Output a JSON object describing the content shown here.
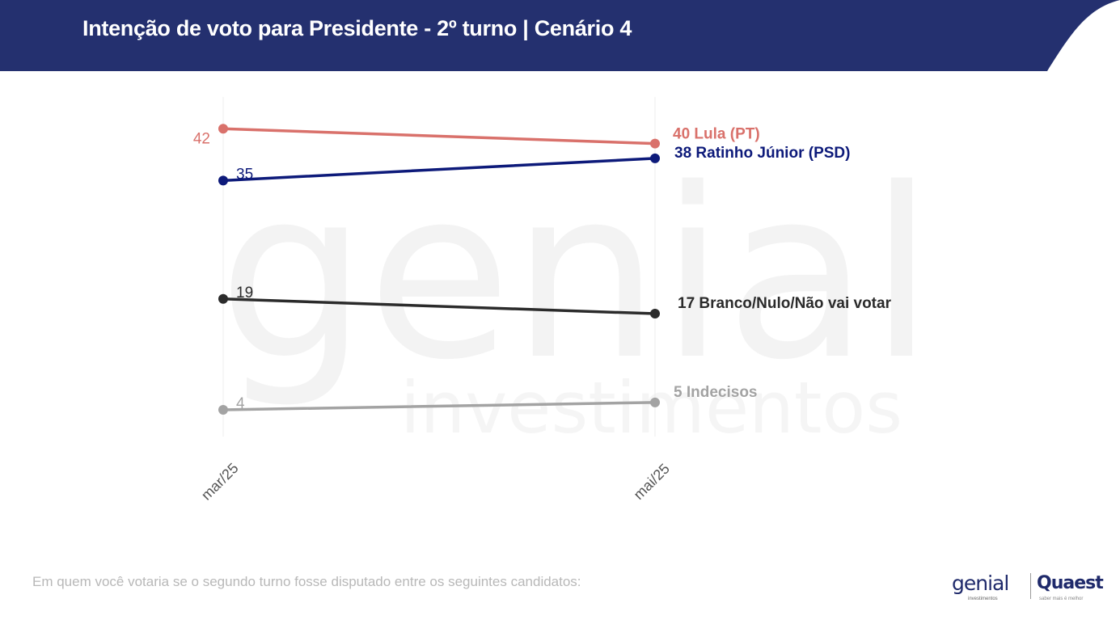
{
  "header": {
    "title": "Intenção de voto para Presidente - 2º turno | Cenário 4",
    "banner_color": "#24306f"
  },
  "footnote": "Em quem você votaria se o segundo turno fosse disputado entre os seguintes candidatos:",
  "logos": {
    "genial": "genial",
    "genial_sub": "investimentos",
    "quaest": "Quaest",
    "quaest_sub": "saber mais é melhor"
  },
  "watermark": {
    "line1": "genial",
    "line2": "investimentos"
  },
  "chart_data": {
    "type": "line",
    "title": "Intenção de voto para Presidente - 2º turno | Cenário 4",
    "x": [
      "mar/25",
      "mai/25"
    ],
    "ylim": [
      0,
      45
    ],
    "grid": "vertical",
    "series": [
      {
        "name": "Lula (PT)",
        "values": [
          42,
          40
        ],
        "color": "#d9716b",
        "start_label": "42",
        "end_label": "40 Lula (PT)",
        "start_side": "left"
      },
      {
        "name": "Ratinho Júnior (PSD)",
        "values": [
          35,
          38
        ],
        "color": "#0d1a7a",
        "start_label": "35",
        "end_label": "38 Ratinho Júnior (PSD)",
        "start_side": "right"
      },
      {
        "name": "Branco/Nulo/Não vai votar",
        "values": [
          19,
          17
        ],
        "color": "#2b2b2b",
        "start_label": "19",
        "end_label": "17 Branco/Nulo/Não vai votar",
        "start_side": "right"
      },
      {
        "name": "Indecisos",
        "values": [
          4,
          5
        ],
        "color": "#a3a3a3",
        "start_label": "4",
        "end_label": "5 Indecisos",
        "start_side": "right"
      }
    ]
  }
}
